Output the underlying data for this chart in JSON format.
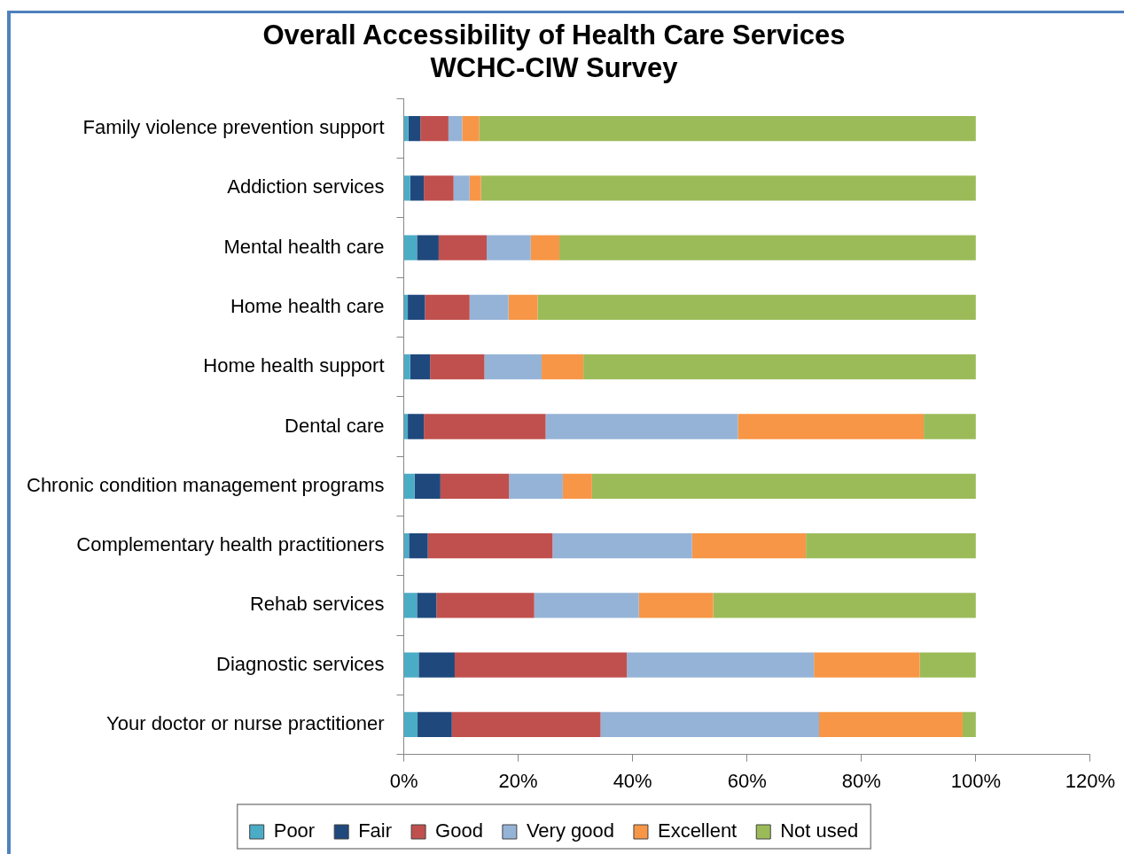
{
  "chart_data": {
    "type": "bar",
    "orientation": "horizontal",
    "stacked": true,
    "title": [
      "Overall Accessibility of Health Care Services",
      "WCHC-CIW Survey"
    ],
    "categories": [
      "Family violence prevention support",
      "Addiction services",
      "Mental health care",
      "Home health care",
      "Home health support",
      "Dental care",
      "Chronic condition management programs",
      "Complementary health practitioners",
      "Rehab services",
      "Diagnostic services",
      "Your doctor or nurse practitioner"
    ],
    "series": [
      {
        "name": "Poor",
        "color": "#4bacc6",
        "values": [
          0.8,
          1.1,
          2.3,
          0.7,
          1.1,
          0.7,
          1.9,
          0.9,
          2.3,
          2.6,
          2.4
        ]
      },
      {
        "name": "Fair",
        "color": "#1f497d",
        "values": [
          2.1,
          2.4,
          3.8,
          3.0,
          3.5,
          2.8,
          4.5,
          3.3,
          3.4,
          6.3,
          6.0
        ]
      },
      {
        "name": "Good",
        "color": "#c0504d",
        "values": [
          4.9,
          5.2,
          8.4,
          7.8,
          9.5,
          21.3,
          12.0,
          21.8,
          17.1,
          30.1,
          26.0
        ]
      },
      {
        "name": "Very good",
        "color": "#95b3d7",
        "values": [
          2.4,
          2.8,
          7.7,
          6.8,
          10.0,
          33.6,
          9.4,
          24.4,
          18.3,
          32.7,
          38.2
        ]
      },
      {
        "name": "Excellent",
        "color": "#f79646",
        "values": [
          3.0,
          2.0,
          5.0,
          5.1,
          7.3,
          32.5,
          5.1,
          19.9,
          13.0,
          18.5,
          25.1
        ]
      },
      {
        "name": "Not used",
        "color": "#9bbb59",
        "values": [
          86.8,
          86.5,
          72.8,
          76.6,
          68.6,
          9.1,
          67.1,
          29.7,
          45.9,
          9.8,
          2.3
        ]
      }
    ],
    "xlim": [
      0,
      120
    ],
    "xticks": [
      {
        "value": 0,
        "label": "0%"
      },
      {
        "value": 20,
        "label": "20%"
      },
      {
        "value": 40,
        "label": "40%"
      },
      {
        "value": 60,
        "label": "60%"
      },
      {
        "value": 80,
        "label": "80%"
      },
      {
        "value": 100,
        "label": "100%"
      },
      {
        "value": 120,
        "label": "120%"
      }
    ],
    "grid": false,
    "legend": "bottom"
  }
}
